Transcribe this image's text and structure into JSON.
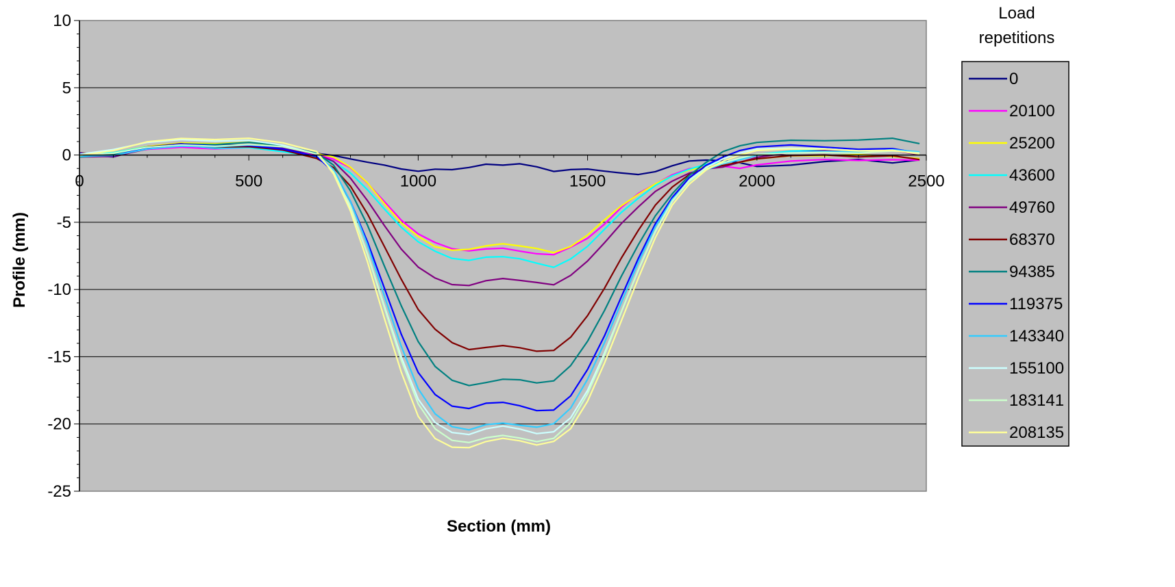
{
  "chart_data": {
    "type": "line",
    "xlabel": "Section (mm)",
    "ylabel": "Profile (mm)",
    "xlim": [
      0,
      2500
    ],
    "ylim": [
      -25,
      10
    ],
    "xticks": [
      0,
      500,
      1000,
      1500,
      2000,
      2500
    ],
    "yticks": [
      10,
      5,
      0,
      -5,
      -10,
      -15,
      -20,
      -25
    ],
    "grid": "horizontal",
    "plot_background": "#c0c0c0",
    "legend": {
      "title_line1": "Load",
      "title_line2": "repetitions",
      "placement": "right"
    },
    "series": [
      {
        "name": "0",
        "color": "#000080",
        "x": [
          0,
          100,
          200,
          300,
          400,
          500,
          600,
          700,
          750,
          800,
          850,
          900,
          950,
          1000,
          1050,
          1100,
          1150,
          1200,
          1250,
          1300,
          1350,
          1400,
          1450,
          1500,
          1550,
          1600,
          1650,
          1700,
          1750,
          1800,
          1850,
          1900,
          1950,
          2000,
          2100,
          2200,
          2300,
          2400,
          2480
        ],
        "y": [
          0,
          -0.2,
          0.4,
          0.7,
          0.6,
          0.6,
          0.3,
          0.1,
          0.0,
          -0.2,
          -0.4,
          -0.6,
          -0.9,
          -1.1,
          -1.0,
          -1.1,
          -1.0,
          -0.8,
          -0.9,
          -0.8,
          -1.0,
          -1.3,
          -1.1,
          -1.0,
          -1.1,
          -1.2,
          -1.3,
          -1.1,
          -0.7,
          -0.4,
          -0.4,
          -0.5,
          -0.7,
          -1.0,
          -0.9,
          -0.6,
          -0.4,
          -0.6,
          -0.3
        ]
      },
      {
        "name": "20100",
        "color": "#ff00ff",
        "x": [
          0,
          100,
          200,
          300,
          400,
          500,
          600,
          700,
          750,
          800,
          850,
          900,
          950,
          1000,
          1050,
          1100,
          1150,
          1200,
          1250,
          1300,
          1350,
          1400,
          1450,
          1500,
          1550,
          1600,
          1650,
          1700,
          1750,
          1800,
          1850,
          1900,
          1950,
          2000,
          2100,
          2200,
          2300,
          2400,
          2480
        ],
        "y": [
          0,
          0.1,
          0.5,
          0.7,
          0.6,
          0.7,
          0.4,
          0.1,
          -0.3,
          -1.0,
          -2.2,
          -3.6,
          -5.0,
          -6.0,
          -6.6,
          -7.0,
          -7.1,
          -6.9,
          -6.8,
          -7.0,
          -7.2,
          -7.3,
          -6.8,
          -6.2,
          -5.2,
          -4.0,
          -3.0,
          -2.3,
          -1.6,
          -1.1,
          -0.9,
          -0.8,
          -0.9,
          -0.6,
          -0.3,
          -0.2,
          -0.3,
          -0.3,
          -0.4
        ]
      },
      {
        "name": "25200",
        "color": "#ffff00",
        "x": [
          0,
          100,
          200,
          300,
          400,
          500,
          600,
          700,
          750,
          800,
          850,
          900,
          950,
          1000,
          1050,
          1100,
          1150,
          1200,
          1250,
          1300,
          1350,
          1400,
          1450,
          1500,
          1550,
          1600,
          1650,
          1700,
          1750,
          1800,
          1850,
          1900,
          1950,
          2000,
          2100,
          2200,
          2300,
          2400,
          2480
        ],
        "y": [
          0,
          0.2,
          0.6,
          0.8,
          0.7,
          0.8,
          0.5,
          0.0,
          -0.2,
          -0.9,
          -2.0,
          -3.5,
          -4.9,
          -5.9,
          -6.7,
          -7.0,
          -7.0,
          -6.8,
          -6.7,
          -6.9,
          -7.1,
          -7.4,
          -6.9,
          -6.0,
          -4.8,
          -3.7,
          -2.8,
          -2.0,
          -1.4,
          -1.0,
          -0.8,
          -0.8,
          -0.6,
          -0.4,
          -0.2,
          -0.2,
          -0.1,
          -0.2,
          -0.3
        ]
      },
      {
        "name": "43600",
        "color": "#00ffff",
        "x": [
          0,
          100,
          200,
          300,
          400,
          500,
          600,
          700,
          750,
          800,
          850,
          900,
          950,
          1000,
          1050,
          1100,
          1150,
          1200,
          1250,
          1300,
          1350,
          1400,
          1450,
          1500,
          1550,
          1600,
          1650,
          1700,
          1750,
          1800,
          1850,
          1900,
          1950,
          2000,
          2100,
          2200,
          2300,
          2400,
          2480
        ],
        "y": [
          0,
          0.1,
          0.6,
          0.8,
          0.6,
          0.7,
          0.4,
          0.0,
          -0.4,
          -1.3,
          -2.6,
          -4.1,
          -5.5,
          -6.6,
          -7.3,
          -7.8,
          -7.9,
          -7.6,
          -7.5,
          -7.6,
          -7.9,
          -8.2,
          -7.6,
          -6.7,
          -5.5,
          -4.3,
          -3.3,
          -2.4,
          -1.7,
          -1.2,
          -0.8,
          -0.6,
          -0.3,
          0.1,
          0.4,
          0.5,
          0.4,
          0.5,
          0.3
        ]
      },
      {
        "name": "49760",
        "color": "#800080",
        "x": [
          0,
          100,
          200,
          300,
          400,
          500,
          600,
          700,
          750,
          800,
          850,
          900,
          950,
          1000,
          1050,
          1100,
          1150,
          1200,
          1250,
          1300,
          1350,
          1400,
          1450,
          1500,
          1550,
          1600,
          1650,
          1700,
          1750,
          1800,
          1850,
          1900,
          1950,
          2000,
          2100,
          2200,
          2300,
          2400,
          2480
        ],
        "y": [
          0,
          0.0,
          0.5,
          0.7,
          0.5,
          0.6,
          0.4,
          -0.1,
          -0.6,
          -1.8,
          -3.4,
          -5.2,
          -6.9,
          -8.2,
          -9.0,
          -9.5,
          -9.6,
          -9.3,
          -9.2,
          -9.4,
          -9.6,
          -9.8,
          -9.1,
          -8.0,
          -6.6,
          -5.1,
          -3.8,
          -2.6,
          -1.8,
          -1.2,
          -0.9,
          -0.8,
          -0.5,
          -0.2,
          0.1,
          0.2,
          0.1,
          0.2,
          -0.1
        ]
      },
      {
        "name": "68370",
        "color": "#800000",
        "x": [
          0,
          100,
          200,
          300,
          400,
          500,
          600,
          700,
          750,
          800,
          850,
          900,
          950,
          1000,
          1050,
          1100,
          1150,
          1200,
          1250,
          1300,
          1350,
          1400,
          1450,
          1500,
          1550,
          1600,
          1650,
          1700,
          1750,
          1800,
          1850,
          1900,
          1950,
          2000,
          2100,
          2200,
          2300,
          2400,
          2480
        ],
        "y": [
          0,
          -0.1,
          0.5,
          0.8,
          0.6,
          0.7,
          0.5,
          -0.1,
          -0.8,
          -2.2,
          -4.3,
          -6.8,
          -9.3,
          -11.6,
          -13.1,
          -14.1,
          -14.6,
          -14.4,
          -14.2,
          -14.3,
          -14.5,
          -14.4,
          -13.4,
          -11.8,
          -9.8,
          -7.6,
          -5.6,
          -3.8,
          -2.5,
          -1.6,
          -1.1,
          -0.9,
          -0.6,
          -0.3,
          0.0,
          0.1,
          0.0,
          0.1,
          -0.2
        ]
      },
      {
        "name": "94385",
        "color": "#008080",
        "x": [
          0,
          100,
          200,
          300,
          400,
          500,
          600,
          700,
          750,
          800,
          850,
          900,
          950,
          1000,
          1050,
          1100,
          1150,
          1200,
          1250,
          1300,
          1350,
          1400,
          1450,
          1500,
          1550,
          1600,
          1650,
          1700,
          1750,
          1800,
          1850,
          1900,
          1950,
          2000,
          2100,
          2200,
          2300,
          2400,
          2480
        ],
        "y": [
          0,
          0.2,
          0.7,
          0.9,
          0.8,
          0.9,
          0.6,
          0.0,
          -0.9,
          -2.8,
          -5.3,
          -8.3,
          -11.2,
          -13.8,
          -15.6,
          -16.6,
          -17.0,
          -16.8,
          -16.6,
          -16.7,
          -17.0,
          -16.9,
          -15.8,
          -14.0,
          -11.7,
          -9.1,
          -6.7,
          -4.5,
          -2.8,
          -1.4,
          -0.4,
          0.4,
          0.8,
          1.0,
          1.1,
          1.0,
          1.0,
          1.1,
          0.7
        ]
      },
      {
        "name": "119375",
        "color": "#0000ff",
        "x": [
          0,
          100,
          200,
          300,
          400,
          500,
          600,
          700,
          750,
          800,
          850,
          900,
          950,
          1000,
          1050,
          1100,
          1150,
          1200,
          1250,
          1300,
          1350,
          1400,
          1450,
          1500,
          1550,
          1600,
          1650,
          1700,
          1750,
          1800,
          1850,
          1900,
          1950,
          2000,
          2100,
          2200,
          2300,
          2400,
          2480
        ],
        "y": [
          0,
          -0.2,
          0.4,
          0.7,
          0.6,
          0.7,
          0.5,
          0.0,
          -1.1,
          -3.3,
          -6.3,
          -9.8,
          -13.3,
          -16.2,
          -17.9,
          -18.8,
          -19.0,
          -18.6,
          -18.5,
          -18.7,
          -19.0,
          -18.9,
          -17.8,
          -15.8,
          -13.3,
          -10.4,
          -7.6,
          -5.1,
          -3.2,
          -1.8,
          -0.9,
          -0.3,
          0.2,
          0.5,
          0.7,
          0.6,
          0.5,
          0.6,
          0.3
        ]
      },
      {
        "name": "143340",
        "color": "#33ccff",
        "x": [
          0,
          100,
          200,
          300,
          400,
          500,
          600,
          700,
          750,
          800,
          850,
          900,
          950,
          1000,
          1050,
          1100,
          1150,
          1200,
          1250,
          1300,
          1350,
          1400,
          1450,
          1500,
          1550,
          1600,
          1650,
          1700,
          1750,
          1800,
          1850,
          1900,
          1950,
          2000,
          2100,
          2200,
          2300,
          2400,
          2480
        ],
        "y": [
          0,
          0.1,
          0.6,
          0.8,
          0.7,
          0.8,
          0.6,
          0.0,
          -1.2,
          -3.6,
          -6.8,
          -10.6,
          -14.3,
          -17.4,
          -19.2,
          -20.1,
          -20.3,
          -19.9,
          -19.8,
          -20.0,
          -20.2,
          -20.0,
          -18.9,
          -16.8,
          -14.1,
          -11.1,
          -8.1,
          -5.4,
          -3.3,
          -1.9,
          -1.0,
          -0.5,
          -0.2,
          0.1,
          0.3,
          0.3,
          0.2,
          0.3,
          0.1
        ]
      },
      {
        "name": "155100",
        "color": "#ccffff",
        "x": [
          0,
          100,
          200,
          300,
          400,
          500,
          600,
          700,
          750,
          800,
          850,
          900,
          950,
          1000,
          1050,
          1100,
          1150,
          1200,
          1250,
          1300,
          1350,
          1400,
          1450,
          1500,
          1550,
          1600,
          1650,
          1700,
          1750,
          1800,
          1850,
          1900,
          1950,
          2000,
          2100,
          2200,
          2300,
          2400,
          2480
        ],
        "y": [
          0,
          0.3,
          0.8,
          1.0,
          0.9,
          1.0,
          0.7,
          0.1,
          -1.2,
          -3.8,
          -7.2,
          -11.1,
          -14.9,
          -18.1,
          -19.9,
          -20.7,
          -20.9,
          -20.5,
          -20.3,
          -20.5,
          -20.8,
          -20.6,
          -19.5,
          -17.4,
          -14.6,
          -11.5,
          -8.4,
          -5.6,
          -3.4,
          -1.9,
          -1.0,
          -0.4,
          0.0,
          0.3,
          0.4,
          0.4,
          0.3,
          0.4,
          0.2
        ]
      },
      {
        "name": "183141",
        "color": "#ccffcc",
        "x": [
          0,
          100,
          200,
          300,
          400,
          500,
          600,
          700,
          750,
          800,
          850,
          900,
          950,
          1000,
          1050,
          1100,
          1150,
          1200,
          1250,
          1300,
          1350,
          1400,
          1450,
          1500,
          1550,
          1600,
          1650,
          1700,
          1750,
          1800,
          1850,
          1900,
          1950,
          2000,
          2100,
          2200,
          2300,
          2400,
          2480
        ],
        "y": [
          0,
          0.2,
          0.7,
          0.9,
          0.8,
          0.9,
          0.7,
          0.1,
          -1.3,
          -3.9,
          -7.5,
          -11.5,
          -15.4,
          -18.6,
          -20.4,
          -21.2,
          -21.3,
          -20.9,
          -20.7,
          -20.9,
          -21.2,
          -21.0,
          -19.9,
          -17.8,
          -15.0,
          -11.8,
          -8.7,
          -5.8,
          -3.5,
          -2.0,
          -1.0,
          -0.5,
          -0.1,
          0.2,
          0.3,
          0.3,
          0.2,
          0.3,
          0.1
        ]
      },
      {
        "name": "208135",
        "color": "#ffff99",
        "x": [
          0,
          100,
          200,
          300,
          400,
          500,
          600,
          700,
          750,
          800,
          850,
          900,
          950,
          1000,
          1050,
          1100,
          1150,
          1200,
          1250,
          1300,
          1350,
          1400,
          1450,
          1500,
          1550,
          1600,
          1650,
          1700,
          1750,
          1800,
          1850,
          1900,
          1950,
          2000,
          2100,
          2200,
          2300,
          2400,
          2480
        ],
        "y": [
          0,
          0.3,
          0.9,
          1.1,
          1.0,
          1.1,
          0.8,
          0.2,
          -1.4,
          -4.1,
          -7.8,
          -12.0,
          -16.0,
          -19.3,
          -21.0,
          -21.7,
          -21.8,
          -21.4,
          -21.2,
          -21.4,
          -21.7,
          -21.4,
          -20.4,
          -18.3,
          -15.4,
          -12.2,
          -9.0,
          -6.0,
          -3.6,
          -2.1,
          -1.1,
          -0.5,
          -0.1,
          0.2,
          0.3,
          0.3,
          0.2,
          0.3,
          0.1
        ]
      }
    ]
  }
}
